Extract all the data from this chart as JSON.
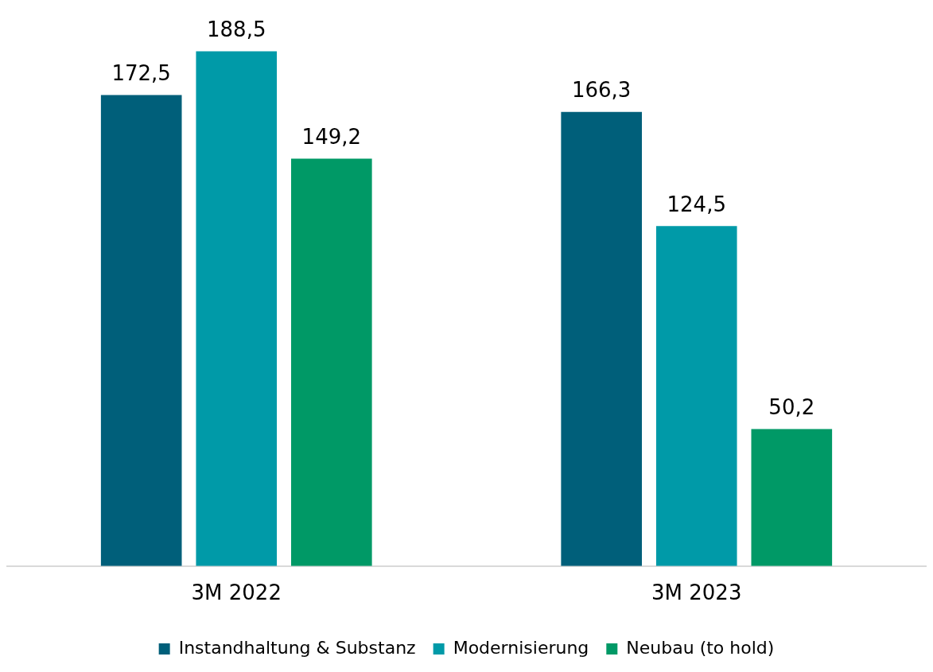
{
  "chart_data": {
    "type": "bar",
    "categories": [
      "3M 2022",
      "3M 2023"
    ],
    "series": [
      {
        "name": "Instandhaltung & Substanz",
        "color": "#005f7a",
        "values": [
          172.5,
          166.3
        ],
        "value_labels": [
          "172,5",
          "166,3"
        ]
      },
      {
        "name": "Modernisierung",
        "color": "#009aa8",
        "values": [
          188.5,
          124.5
        ],
        "value_labels": [
          "188,5",
          "124,5"
        ]
      },
      {
        "name": "Neubau (to hold)",
        "color": "#009966",
        "values": [
          149.2,
          50.2
        ],
        "value_labels": [
          "149,2",
          "50,2"
        ]
      }
    ],
    "legend": "bottom",
    "grid": false
  }
}
